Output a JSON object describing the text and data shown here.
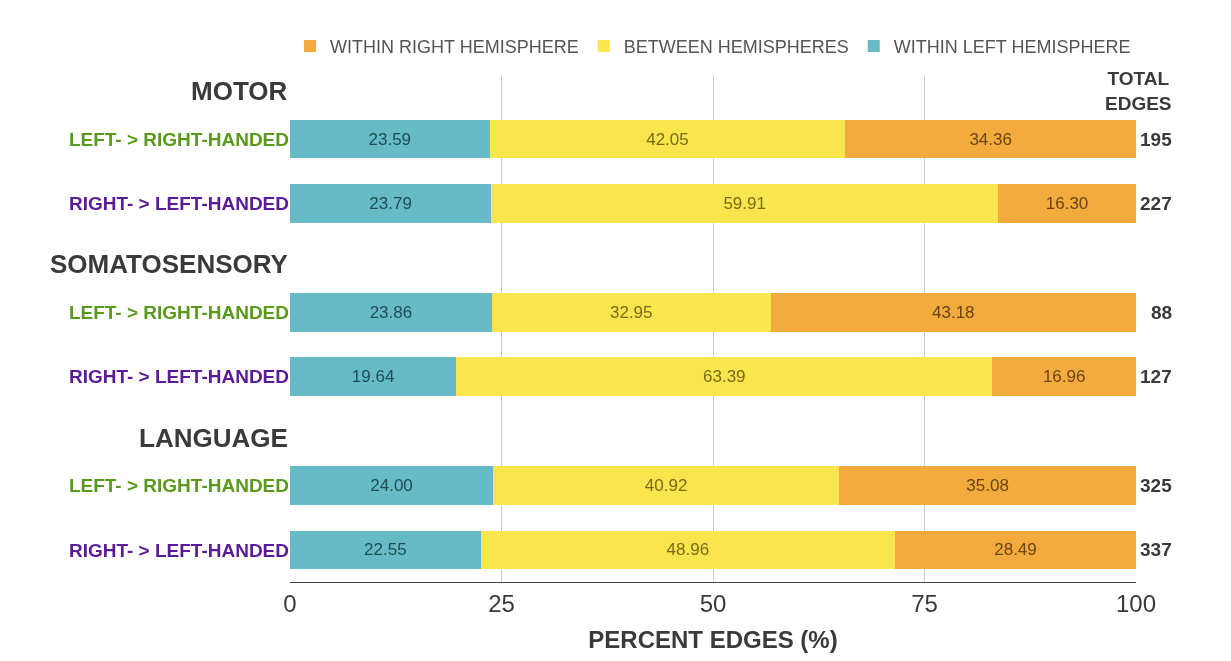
{
  "chart_data": {
    "type": "bar",
    "orientation": "horizontal",
    "stacked": true,
    "categories": [
      "LEFT- > RIGHT-HANDED",
      "RIGHT- > LEFT-HANDED",
      "LEFT- > RIGHT-HANDED",
      "RIGHT- > LEFT-HANDED",
      "LEFT- > RIGHT-HANDED",
      "RIGHT- > LEFT-HANDED"
    ],
    "series": [
      {
        "name": "WITHIN LEFT HEMISPHERE",
        "color": "#66bbc6",
        "values": [
          23.59,
          23.79,
          23.86,
          19.64,
          24.0,
          22.55
        ],
        "value_labels": [
          "23.59",
          "23.79",
          "23.86",
          "19.64",
          "24.00",
          "22.55"
        ]
      },
      {
        "name": "BETWEEN HEMISPHERES",
        "color": "#f9e54e",
        "values": [
          42.05,
          59.91,
          32.95,
          63.39,
          40.92,
          48.96
        ],
        "value_labels": [
          "42.05",
          "59.91",
          "32.95",
          "63.39",
          "40.92",
          "48.96"
        ]
      },
      {
        "name": "WITHIN RIGHT HEMISPHERE",
        "color": "#f4ab3e",
        "values": [
          34.36,
          16.3,
          43.18,
          16.96,
          35.08,
          28.49
        ],
        "value_labels": [
          "34.36",
          "16.30",
          "43.18",
          "16.96",
          "35.08",
          "28.49"
        ]
      }
    ],
    "xlabel": "PERCENT EDGES (%)",
    "xlim": [
      0,
      100
    ],
    "xticks": [
      0,
      25,
      50,
      75,
      100
    ],
    "grid": "x",
    "legend": "top",
    "annotations": [
      "MOTOR",
      "SOMATOSENSORY",
      "LANGUAGE",
      "TOTAL EDGES",
      "195",
      "227",
      "88",
      "127",
      "325",
      "337"
    ]
  }
}
